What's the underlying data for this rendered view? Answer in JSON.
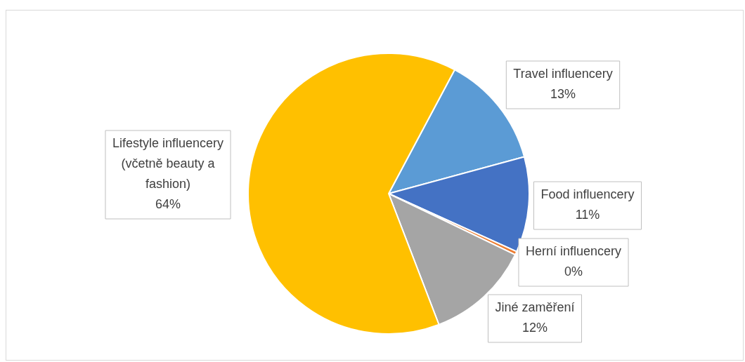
{
  "chart_data": {
    "type": "pie",
    "categories": [
      "Travel influencery",
      "Food influencery",
      "Herní influencery",
      "Jiné zaměření",
      "Lifestyle influencery (včetně beauty a fashion)"
    ],
    "values": [
      13,
      11,
      0.4,
      12,
      63.6
    ],
    "value_labels": [
      "13%",
      "11%",
      "0%",
      "12%",
      "64%"
    ],
    "colors": [
      "#5b9bd5",
      "#4472c4",
      "#ed7d31",
      "#a5a5a5",
      "#ffc000"
    ],
    "legend": false
  }
}
